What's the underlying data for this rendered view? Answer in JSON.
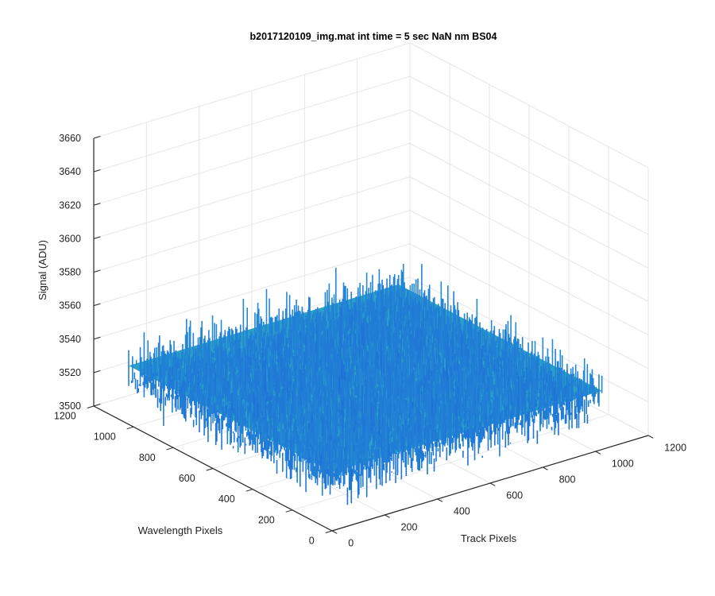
{
  "chart_data": {
    "type": "surface",
    "title": "b2017120109_img.mat int time = 5 sec  NaN nm BS04",
    "xlabel": "Track Pixels",
    "ylabel": "Wavelength Pixels",
    "zlabel": "Signal (ADU)",
    "xlim": [
      0,
      1200
    ],
    "ylim": [
      0,
      1200
    ],
    "zlim": [
      3500,
      3660
    ],
    "x_ticks": [
      0,
      200,
      400,
      600,
      800,
      1000,
      1200
    ],
    "y_ticks": [
      0,
      200,
      400,
      600,
      800,
      1000,
      1200
    ],
    "z_ticks": [
      3500,
      3520,
      3540,
      3560,
      3580,
      3600,
      3620,
      3640,
      3660
    ],
    "x_tick_labels": [
      "0",
      "200",
      "400",
      "600",
      "800",
      "1000",
      "1200"
    ],
    "y_tick_labels": [
      "0",
      "200",
      "400",
      "600",
      "800",
      "1000",
      "1200"
    ],
    "z_tick_labels": [
      "3500",
      "3520",
      "3540",
      "3560",
      "3580",
      "3600",
      "3620",
      "3640",
      "3660"
    ],
    "surface": {
      "x_range": [
        0,
        1024
      ],
      "y_range": [
        0,
        1024
      ],
      "mean_signal": 3535,
      "noise_range": [
        3505,
        3600
      ],
      "colormap": "parula"
    },
    "grid": true,
    "view": "3d-azimuth-minus37.5-elevation30"
  },
  "colors": {
    "surface_low": "#1c6fd8",
    "surface_mid": "#2aa0c8",
    "surface_high": "#4cc0a8",
    "grid": "#e6e6e6",
    "axis": "#262626"
  }
}
